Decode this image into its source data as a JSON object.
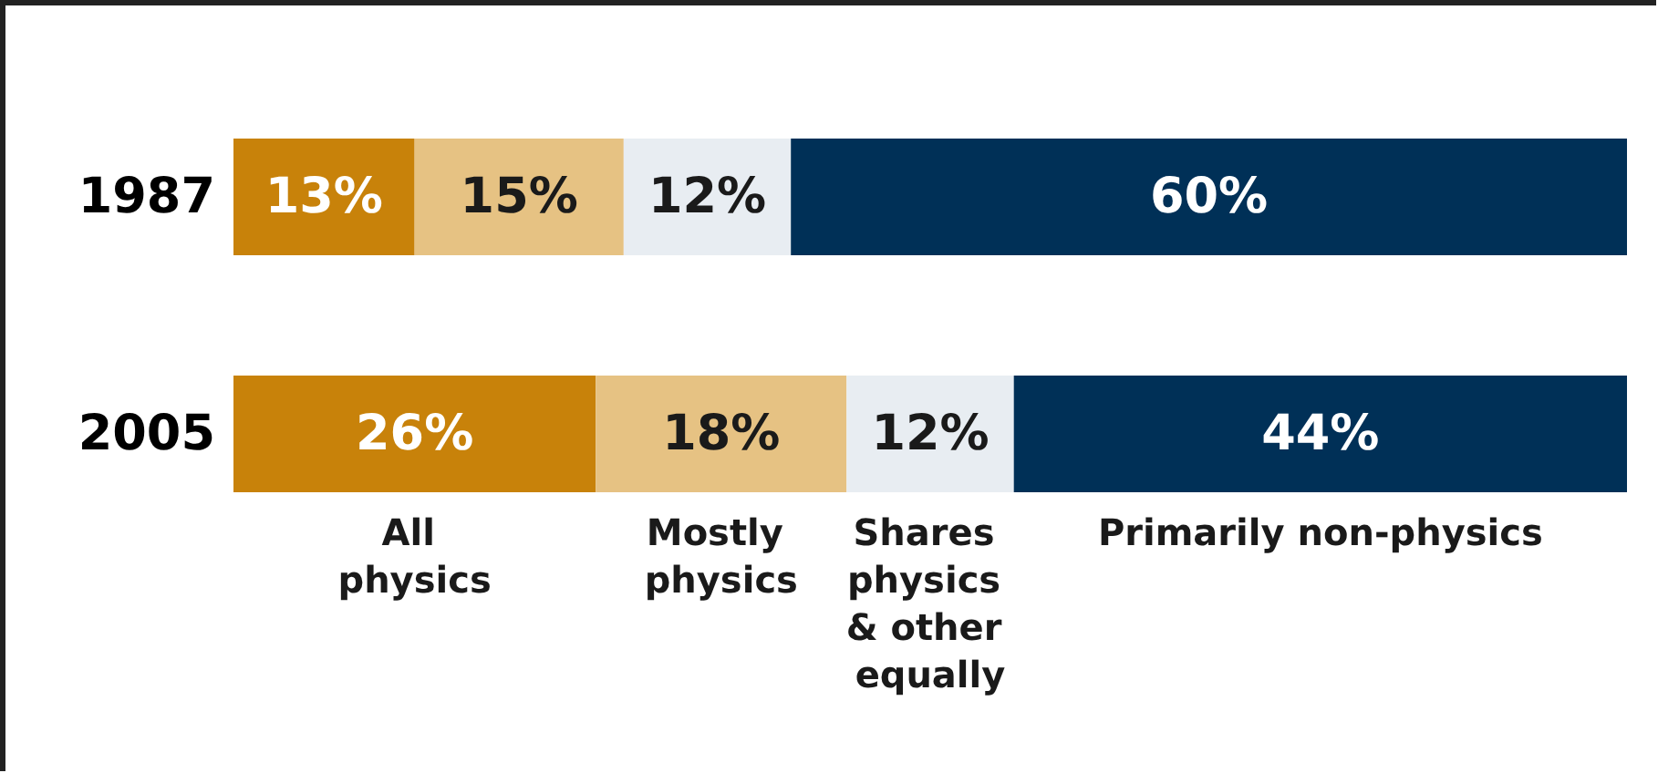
{
  "chart_data": {
    "type": "bar",
    "orientation": "horizontal",
    "stacked": true,
    "categories": [
      "1987",
      "2005"
    ],
    "tick_labels": "y",
    "series": [
      {
        "name": "All physics",
        "color": "#c8820a",
        "values": [
          13,
          26
        ],
        "value_labels": [
          "13%",
          "26%"
        ]
      },
      {
        "name": "Mostly physics",
        "color": "#e6c283",
        "values": [
          15,
          18
        ],
        "value_labels": [
          "15%",
          "18%"
        ]
      },
      {
        "name": "Shares physics & other equally",
        "color": "#e8edf2",
        "values": [
          12,
          12
        ],
        "value_labels": [
          "12%",
          "12%"
        ]
      },
      {
        "name": "Primarily non-physics",
        "color": "#003057",
        "values": [
          60,
          44
        ],
        "value_labels": [
          "60%",
          "44%"
        ]
      }
    ]
  }
}
